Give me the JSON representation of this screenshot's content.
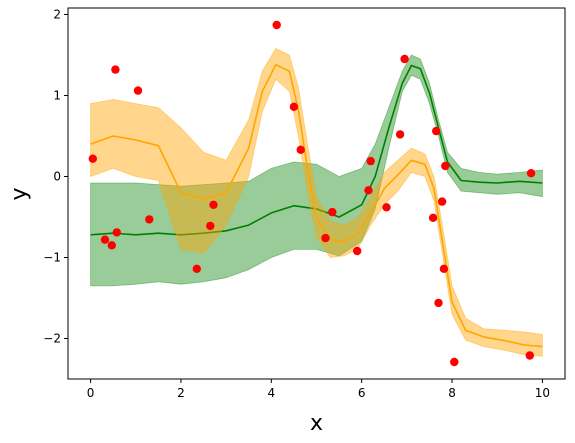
{
  "chart_data": {
    "type": "line",
    "title": "",
    "xlabel": "x",
    "ylabel": "y",
    "xlim": [
      -0.5,
      10.5
    ],
    "ylim": [
      -2.5,
      2.08
    ],
    "xticks": [
      0,
      2,
      4,
      6,
      8,
      10
    ],
    "yticks": [
      -2,
      -1,
      0,
      1,
      2
    ],
    "xtick_labels": [
      "0",
      "2",
      "4",
      "6",
      "8",
      "10"
    ],
    "ytick_labels": [
      "−2",
      "−1",
      "0",
      "1",
      "2"
    ],
    "grid": false,
    "series": [
      {
        "type": "band",
        "color": "#008000",
        "opacity": 0.4,
        "x": [
          0,
          0.5,
          1,
          1.5,
          2,
          2.5,
          3,
          3.5,
          4,
          4.5,
          5,
          5.5,
          6,
          6.3,
          6.6,
          6.9,
          7.1,
          7.3,
          7.5,
          7.7,
          7.9,
          8.2,
          8.6,
          9,
          9.5,
          10
        ],
        "upper": [
          -0.08,
          -0.08,
          -0.08,
          -0.1,
          -0.12,
          -0.1,
          -0.08,
          -0.06,
          0.1,
          0.18,
          0.15,
          0.0,
          0.1,
          0.4,
          0.85,
          1.3,
          1.5,
          1.45,
          1.15,
          0.7,
          0.3,
          0.1,
          0.05,
          0.03,
          0.05,
          0.08
        ],
        "lower": [
          -1.35,
          -1.35,
          -1.33,
          -1.3,
          -1.33,
          -1.3,
          -1.25,
          -1.15,
          -1.0,
          -0.9,
          -0.9,
          -0.98,
          -0.8,
          -0.4,
          0.35,
          1.05,
          1.25,
          1.2,
          0.9,
          0.5,
          0.05,
          -0.18,
          -0.2,
          -0.22,
          -0.2,
          -0.25
        ]
      },
      {
        "type": "line",
        "color": "#008000",
        "x": [
          0,
          0.5,
          1,
          1.5,
          2,
          2.5,
          3,
          3.5,
          4,
          4.5,
          5,
          5.5,
          6,
          6.3,
          6.6,
          6.9,
          7.1,
          7.3,
          7.5,
          7.7,
          7.9,
          8.2,
          8.6,
          9,
          9.5,
          10
        ],
        "y": [
          -0.72,
          -0.7,
          -0.72,
          -0.7,
          -0.72,
          -0.7,
          -0.67,
          -0.6,
          -0.45,
          -0.36,
          -0.4,
          -0.5,
          -0.35,
          0.0,
          0.6,
          1.15,
          1.37,
          1.33,
          1.03,
          0.6,
          0.18,
          -0.05,
          -0.07,
          -0.08,
          -0.06,
          -0.08
        ]
      },
      {
        "type": "band",
        "color": "#ffa500",
        "opacity": 0.45,
        "x": [
          0,
          0.5,
          1,
          1.5,
          2,
          2.5,
          3,
          3.5,
          3.8,
          4.1,
          4.4,
          4.6,
          4.8,
          5,
          5.3,
          5.6,
          5.9,
          6.2,
          6.5,
          6.8,
          7.1,
          7.4,
          7.6,
          7.8,
          8,
          8.3,
          8.7,
          9.2,
          9.6,
          10
        ],
        "upper": [
          0.9,
          0.95,
          0.9,
          0.85,
          0.6,
          0.3,
          0.2,
          0.7,
          1.3,
          1.58,
          1.5,
          1.1,
          0.4,
          -0.25,
          -0.55,
          -0.6,
          -0.52,
          -0.25,
          0.05,
          0.2,
          0.35,
          0.28,
          0.0,
          -0.65,
          -1.35,
          -1.75,
          -1.88,
          -1.9,
          -1.92,
          -1.95
        ],
        "lower": [
          0.0,
          0.1,
          0.0,
          -0.05,
          -0.9,
          -0.95,
          -0.6,
          0.0,
          0.8,
          1.2,
          1.05,
          0.5,
          -0.2,
          -0.75,
          -1.0,
          -0.98,
          -0.9,
          -0.6,
          -0.35,
          -0.18,
          0.05,
          0.0,
          -0.3,
          -1.0,
          -1.7,
          -2.02,
          -2.1,
          -2.15,
          -2.2,
          -2.22
        ]
      },
      {
        "type": "line",
        "color": "#ffa500",
        "x": [
          0,
          0.5,
          1,
          1.5,
          2,
          2.5,
          3,
          3.5,
          3.8,
          4.1,
          4.4,
          4.6,
          4.8,
          5,
          5.3,
          5.6,
          5.9,
          6.2,
          6.5,
          6.8,
          7.1,
          7.4,
          7.6,
          7.8,
          8,
          8.3,
          8.7,
          9.2,
          9.6,
          10
        ],
        "y": [
          0.4,
          0.5,
          0.45,
          0.38,
          -0.2,
          -0.28,
          -0.2,
          0.35,
          1.05,
          1.38,
          1.3,
          0.82,
          0.1,
          -0.5,
          -0.78,
          -0.8,
          -0.72,
          -0.45,
          -0.15,
          0.02,
          0.2,
          0.15,
          -0.15,
          -0.85,
          -1.55,
          -1.9,
          -1.98,
          -2.03,
          -2.08,
          -2.1
        ]
      },
      {
        "type": "scatter",
        "color": "#ff0000",
        "x": [
          0.05,
          0.32,
          0.47,
          0.55,
          0.58,
          1.05,
          1.3,
          2.35,
          2.65,
          2.72,
          4.12,
          4.5,
          4.65,
          5.2,
          5.35,
          5.9,
          6.15,
          6.2,
          6.55,
          6.85,
          6.95,
          7.58,
          7.65,
          7.7,
          7.78,
          7.82,
          7.85,
          8.05,
          9.72,
          9.75
        ],
        "y": [
          0.22,
          -0.78,
          -0.85,
          1.32,
          -0.69,
          1.06,
          -0.53,
          -1.14,
          -0.61,
          -0.35,
          1.87,
          0.86,
          0.33,
          -0.76,
          -0.44,
          -0.92,
          -0.17,
          0.19,
          -0.38,
          0.52,
          1.45,
          -0.51,
          0.56,
          -1.56,
          -0.31,
          -1.14,
          0.13,
          -2.29,
          -2.21,
          0.04
        ]
      }
    ]
  }
}
